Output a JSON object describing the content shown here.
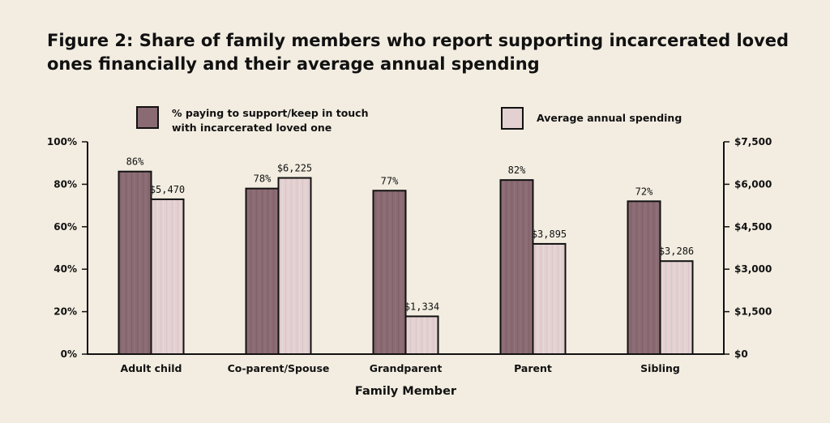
{
  "chart_data": {
    "type": "bar",
    "title": "Figure 2: Share of family members who report supporting incarcerated loved ones financially and their average annual spending",
    "xlabel": "Family Member",
    "categories": [
      "Adult child",
      "Co-parent/Spouse",
      "Grandparent",
      "Parent",
      "Sibling"
    ],
    "series": [
      {
        "name": "% paying to support/keep in touch with incarcerated loved one",
        "axis": "left",
        "values": [
          86,
          78,
          77,
          82,
          72
        ],
        "labels": [
          "86%",
          "78%",
          "77%",
          "82%",
          "72%"
        ],
        "color": "#8b6b73"
      },
      {
        "name": "Average annual spending",
        "axis": "right",
        "values": [
          5470,
          6225,
          1334,
          3895,
          3286
        ],
        "labels": [
          "$5,470",
          "$6,225",
          "$1,334",
          "$3,895",
          "$3,286"
        ],
        "color": "#e3d0d1"
      }
    ],
    "ylim_left": [
      0,
      100
    ],
    "ylim_right": [
      0,
      7500
    ],
    "yticks_left": [
      {
        "value": 0,
        "label": "0%"
      },
      {
        "value": 20,
        "label": "20%"
      },
      {
        "value": 40,
        "label": "40%"
      },
      {
        "value": 60,
        "label": "60%"
      },
      {
        "value": 80,
        "label": "80%"
      },
      {
        "value": 100,
        "label": "100%"
      }
    ],
    "yticks_right": [
      {
        "value": 0,
        "label": "$0"
      },
      {
        "value": 1500,
        "label": "$1,500"
      },
      {
        "value": 3000,
        "label": "$3,000"
      },
      {
        "value": 4500,
        "label": "$4,500"
      },
      {
        "value": 6000,
        "label": "$6,000"
      },
      {
        "value": 7500,
        "label": "$7,500"
      }
    ],
    "legend_position": "top",
    "grid": false
  }
}
